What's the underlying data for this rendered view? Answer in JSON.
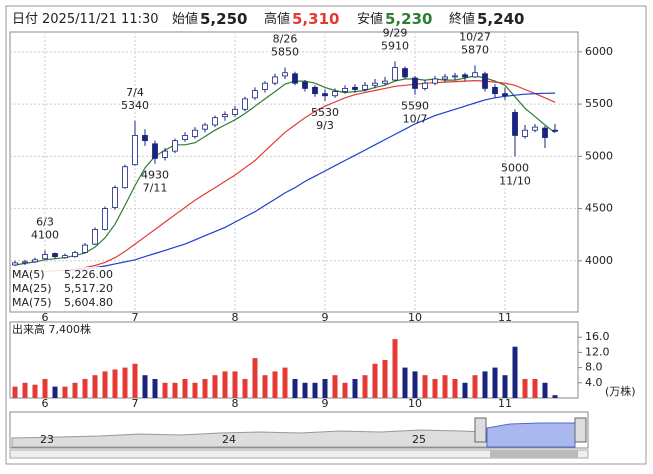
{
  "header": {
    "date_label": "日付",
    "datetime": "2025/11/21 11:30",
    "open_label": "始値",
    "open": "5,250",
    "high_label": "高値",
    "high": "5,310",
    "low_label": "安値",
    "low": "5,230",
    "close_label": "終値",
    "close": "5,240"
  },
  "chart_data": [
    {
      "type": "candlestick",
      "categories": [
        null,
        null,
        null,
        "6",
        null,
        null,
        null,
        null,
        null,
        null,
        null,
        null,
        "7",
        null,
        null,
        null,
        null,
        null,
        null,
        null,
        null,
        null,
        "8",
        null,
        null,
        null,
        null,
        null,
        null,
        null,
        null,
        "9",
        null,
        null,
        null,
        null,
        null,
        null,
        null,
        null,
        "10",
        null,
        null,
        null,
        null,
        null,
        null,
        null,
        null,
        "11",
        null,
        null,
        null,
        null,
        null
      ],
      "open": [
        3960,
        3980,
        3990,
        4020,
        4070,
        4030,
        4040,
        4080,
        4160,
        4300,
        4510,
        4700,
        4920,
        5200,
        5120,
        4990,
        5050,
        5160,
        5190,
        5260,
        5300,
        5380,
        5400,
        5450,
        5560,
        5640,
        5700,
        5770,
        5790,
        5710,
        5660,
        5600,
        5580,
        5620,
        5660,
        5640,
        5680,
        5700,
        5730,
        5840,
        5750,
        5650,
        5700,
        5740,
        5760,
        5780,
        5760,
        5790,
        5660,
        5600,
        5420,
        5190,
        5250,
        5270,
        5250
      ],
      "high": [
        4000,
        4010,
        4030,
        4100,
        4080,
        4070,
        4095,
        4170,
        4320,
        4520,
        4720,
        4920,
        5340,
        5260,
        5150,
        5080,
        5170,
        5230,
        5280,
        5320,
        5390,
        5430,
        5480,
        5570,
        5660,
        5720,
        5790,
        5850,
        5810,
        5730,
        5680,
        5640,
        5650,
        5680,
        5690,
        5710,
        5740,
        5760,
        5910,
        5860,
        5770,
        5730,
        5770,
        5790,
        5800,
        5800,
        5870,
        5810,
        5690,
        5660,
        5450,
        5300,
        5310,
        5290,
        5310
      ],
      "low": [
        3950,
        3960,
        3980,
        4010,
        4020,
        4020,
        4030,
        4070,
        4150,
        4290,
        4490,
        4690,
        4910,
        5100,
        4930,
        4960,
        5030,
        5140,
        5170,
        5230,
        5280,
        5340,
        5380,
        5430,
        5540,
        5610,
        5680,
        5740,
        5680,
        5620,
        5570,
        5530,
        5560,
        5600,
        5610,
        5620,
        5650,
        5680,
        5720,
        5740,
        5590,
        5630,
        5680,
        5710,
        5730,
        5720,
        5750,
        5620,
        5560,
        5540,
        5000,
        5170,
        5230,
        5080,
        5230
      ],
      "close": [
        3980,
        3990,
        4010,
        4060,
        4040,
        4050,
        4080,
        4150,
        4300,
        4500,
        4700,
        4900,
        5200,
        5150,
        4980,
        5050,
        5150,
        5200,
        5250,
        5300,
        5370,
        5400,
        5450,
        5550,
        5630,
        5700,
        5760,
        5800,
        5700,
        5650,
        5600,
        5580,
        5620,
        5650,
        5640,
        5680,
        5700,
        5720,
        5850,
        5760,
        5650,
        5700,
        5740,
        5760,
        5770,
        5760,
        5800,
        5650,
        5600,
        5580,
        5200,
        5250,
        5280,
        5180,
        5240
      ],
      "up_color": "#ffffff",
      "down_color": "#1a237e",
      "series": [
        {
          "name": "MA(5)",
          "latest": "5,226.00",
          "color": "#2e7d32",
          "values": [
            3960,
            3975,
            3990,
            4010,
            4020,
            4030,
            4050,
            4075,
            4130,
            4220,
            4350,
            4530,
            4720,
            4890,
            5000,
            5060,
            5110,
            5110,
            5130,
            5190,
            5250,
            5300,
            5350,
            5410,
            5480,
            5550,
            5620,
            5690,
            5720,
            5720,
            5700,
            5660,
            5630,
            5610,
            5620,
            5630,
            5660,
            5680,
            5720,
            5740,
            5740,
            5730,
            5740,
            5730,
            5730,
            5750,
            5770,
            5750,
            5720,
            5680,
            5570,
            5460,
            5380,
            5300,
            5226
          ]
        },
        {
          "name": "MA(25)",
          "latest": "5,517.20",
          "color": "#e53935",
          "values": [
            3880,
            3885,
            3890,
            3900,
            3905,
            3910,
            3920,
            3935,
            3955,
            3985,
            4030,
            4090,
            4160,
            4230,
            4300,
            4370,
            4440,
            4510,
            4580,
            4640,
            4700,
            4760,
            4820,
            4890,
            4960,
            5050,
            5140,
            5230,
            5300,
            5370,
            5430,
            5480,
            5520,
            5560,
            5590,
            5610,
            5630,
            5650,
            5670,
            5680,
            5690,
            5700,
            5705,
            5710,
            5715,
            5720,
            5725,
            5720,
            5710,
            5700,
            5680,
            5640,
            5600,
            5560,
            5517.2
          ]
        },
        {
          "name": "MA(75)",
          "latest": "5,604.80",
          "color": "#1e3fd0",
          "values": [
            null,
            null,
            null,
            null,
            null,
            3900,
            3910,
            3920,
            3935,
            3950,
            3970,
            3990,
            4010,
            4040,
            4070,
            4100,
            4130,
            4160,
            4200,
            4240,
            4280,
            4320,
            4370,
            4420,
            4470,
            4530,
            4590,
            4650,
            4700,
            4760,
            4810,
            4860,
            4910,
            4960,
            5010,
            5060,
            5110,
            5160,
            5210,
            5260,
            5310,
            5350,
            5390,
            5420,
            5450,
            5480,
            5510,
            5540,
            5560,
            5575,
            5585,
            5595,
            5600,
            5603,
            5604.8
          ]
        }
      ],
      "ylim": [
        3510,
        6190
      ],
      "yticks": [
        4000,
        4500,
        5000,
        5500,
        6000
      ],
      "grid": true,
      "annotations": [
        {
          "date": "6/3",
          "value": 4100
        },
        {
          "date": "7/4",
          "value": 5340
        },
        {
          "date": "7/11",
          "value": 4930
        },
        {
          "date": "8/26",
          "value": 5850
        },
        {
          "date": "9/3",
          "value": 5530
        },
        {
          "date": "9/29",
          "value": 5910
        },
        {
          "date": "10/7",
          "value": 5590
        },
        {
          "date": "10/27",
          "value": 5870
        },
        {
          "date": "11/10",
          "value": 5000
        }
      ]
    },
    {
      "type": "bar",
      "title": "出来高 7,400株",
      "unit": "(万株)",
      "categories": [
        null,
        null,
        null,
        "6",
        null,
        null,
        null,
        null,
        null,
        null,
        null,
        null,
        "7",
        null,
        null,
        null,
        null,
        null,
        null,
        null,
        null,
        null,
        "8",
        null,
        null,
        null,
        null,
        null,
        null,
        null,
        null,
        "9",
        null,
        null,
        null,
        null,
        null,
        null,
        null,
        null,
        "10",
        null,
        null,
        null,
        null,
        null,
        null,
        null,
        null,
        "11",
        null,
        null,
        null,
        null,
        null
      ],
      "values": [
        3,
        4,
        3.5,
        5,
        3,
        3,
        4,
        5,
        6,
        7,
        7.5,
        8,
        9,
        6,
        5,
        4,
        4,
        5,
        4,
        5,
        6,
        7,
        7,
        5,
        10.5,
        6,
        7,
        8,
        5,
        4,
        4,
        5,
        6,
        4,
        5,
        6,
        9,
        10,
        15.5,
        8,
        7,
        6,
        5,
        6,
        5,
        4,
        6,
        7,
        8,
        6,
        13.5,
        5,
        5,
        4,
        0.74
      ],
      "up_color": "#e53935",
      "down_color": "#1a237e",
      "ylim": [
        0,
        20
      ],
      "yticks": [
        {
          "value": 4,
          "label": "4.0"
        },
        {
          "value": 8,
          "label": "8.0"
        },
        {
          "value": 12,
          "label": "12.0"
        },
        {
          "value": 16,
          "label": "16.0"
        }
      ],
      "grid": true
    }
  ],
  "navigator": {
    "labels": [
      "23",
      "24",
      "25"
    ]
  }
}
